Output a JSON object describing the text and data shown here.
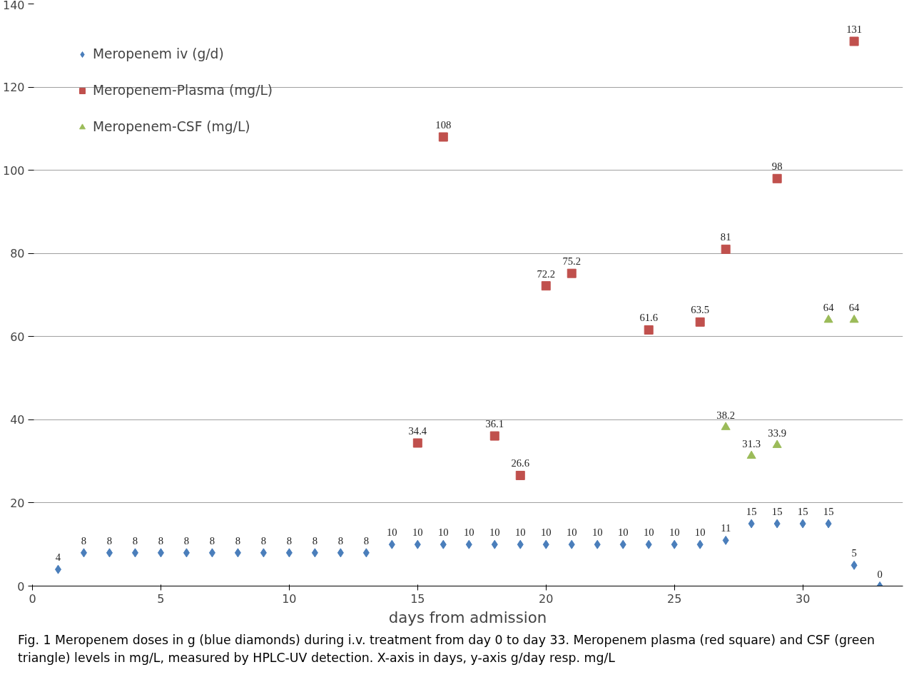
{
  "chart_data": {
    "type": "scatter",
    "xlabel": "days from admission",
    "annotations": [
      "Fig. 1  Meropenem doses in g (blue diamonds) during i.v. treatment from day 0 to day 33. Meropenem plasma (red square) and CSF (green triangle) levels in mg/L, measured by HPLC-UV detection. X-axis in days, y-axis g/day resp. mg/L"
    ],
    "series": [
      {
        "name": "Meropenem iv (g/d)",
        "color": "#4a7ebb",
        "marker": "diamond",
        "x": [
          1,
          2,
          3,
          4,
          5,
          6,
          7,
          8,
          9,
          10,
          11,
          12,
          13,
          14,
          15,
          16,
          17,
          18,
          19,
          20,
          21,
          22,
          23,
          24,
          25,
          26,
          27,
          28,
          29,
          30,
          31,
          32,
          33
        ],
        "values": [
          4,
          8,
          8,
          8,
          8,
          8,
          8,
          8,
          8,
          8,
          8,
          8,
          8,
          10,
          10,
          10,
          10,
          10,
          10,
          10,
          10,
          10,
          10,
          10,
          10,
          10,
          11,
          15,
          15,
          15,
          15,
          5,
          0
        ]
      },
      {
        "name": "Meropenem-Plasma (mg/L)",
        "color": "#c0504d",
        "marker": "square",
        "x": [
          15,
          16,
          18,
          19,
          20,
          21,
          24,
          26,
          27,
          29,
          32
        ],
        "values": [
          34.4,
          108,
          36.1,
          26.6,
          72.2,
          75.2,
          61.6,
          63.5,
          81,
          98,
          131
        ]
      },
      {
        "name": "Meropenem-CSF (mg/L)",
        "color": "#9bbb59",
        "marker": "triangle",
        "x": [
          27,
          28,
          29,
          31,
          32
        ],
        "values": [
          38.2,
          31.3,
          33.9,
          64,
          64
        ]
      }
    ],
    "data_labels": true,
    "xlim": [
      0,
      33.9
    ],
    "xticks": [
      0,
      5,
      10,
      15,
      20,
      25,
      30
    ],
    "ylim": [
      0,
      140
    ],
    "yticks": [
      0,
      20,
      40,
      60,
      80,
      100,
      120,
      140
    ],
    "grid": "y",
    "legend": "top left"
  }
}
